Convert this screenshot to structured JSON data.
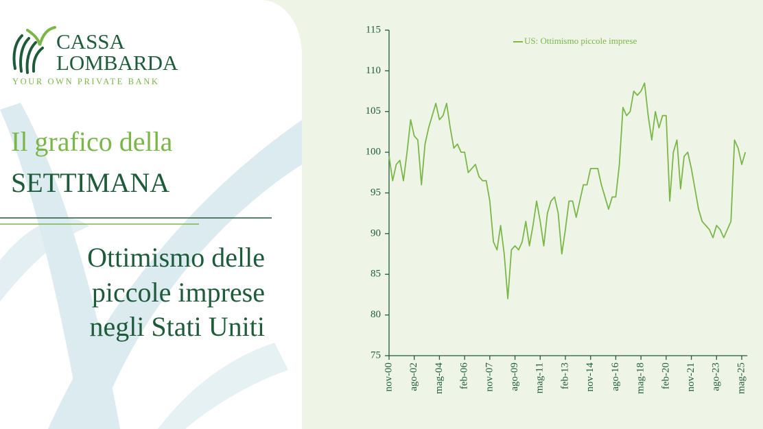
{
  "logo": {
    "name_1": "CASSA",
    "name_2": "LOMBARDA",
    "tagline": "YOUR OWN PRIVATE BANK"
  },
  "heading": {
    "line_1": "Il grafico della",
    "line_2": "SETTIMANA"
  },
  "subtitle": [
    "Ottimismo delle",
    "piccole imprese",
    "negli Stati Uniti"
  ],
  "chart_data": {
    "type": "line",
    "categories": [
      "nov-00",
      null,
      null,
      null,
      null,
      null,
      null,
      "ago-02",
      null,
      null,
      null,
      null,
      null,
      null,
      "mag-04",
      null,
      null,
      null,
      null,
      null,
      null,
      "feb-06",
      null,
      null,
      null,
      null,
      null,
      null,
      "nov-07",
      null,
      null,
      null,
      null,
      null,
      null,
      "ago-09",
      null,
      null,
      null,
      null,
      null,
      null,
      "mag-11",
      null,
      null,
      null,
      null,
      null,
      null,
      "feb-13",
      null,
      null,
      null,
      null,
      null,
      null,
      "nov-14",
      null,
      null,
      null,
      null,
      null,
      null,
      "ago-16",
      null,
      null,
      null,
      null,
      null,
      null,
      "mag-18",
      null,
      null,
      null,
      null,
      null,
      null,
      "feb-20",
      null,
      null,
      null,
      null,
      null,
      null,
      "nov-21",
      null,
      null,
      null,
      null,
      null,
      null,
      "ago-23",
      null,
      null,
      null,
      null,
      null,
      null,
      "mag-25",
      null
    ],
    "series": [
      {
        "name": "US: Ottimismo piccole imprese",
        "color": "#7ab648",
        "values": [
          99.5,
          96.5,
          98.5,
          99,
          96.5,
          100,
          104,
          102,
          101.5,
          96,
          101,
          103,
          104.5,
          106,
          104,
          104.5,
          106,
          103,
          100.5,
          101,
          100,
          100,
          97.5,
          98,
          98.5,
          97,
          96.5,
          96.5,
          94,
          89,
          88,
          91,
          87.5,
          82,
          88,
          88.5,
          88,
          89,
          91.5,
          88.5,
          91,
          94,
          91.5,
          88.5,
          92.5,
          94,
          94.5,
          92.5,
          87.5,
          90.5,
          94,
          94,
          92,
          94,
          96,
          96,
          98,
          98,
          98,
          96,
          94.5,
          93,
          94.5,
          94.5,
          98.5,
          105.5,
          104.5,
          105,
          107.5,
          107,
          107.5,
          108.5,
          104.5,
          101.5,
          105,
          103,
          104.5,
          104.5,
          94,
          100,
          101.5,
          95.5,
          99.5,
          100,
          98,
          95.5,
          93,
          91.5,
          91,
          90.5,
          89.5,
          91,
          90.5,
          89.5,
          90.5,
          91.5,
          101.5,
          100.5,
          98.5,
          100
        ]
      }
    ],
    "ylim": [
      75,
      115
    ],
    "yticks": [
      75,
      80,
      85,
      90,
      95,
      100,
      105,
      110,
      115
    ],
    "legend": "top"
  }
}
